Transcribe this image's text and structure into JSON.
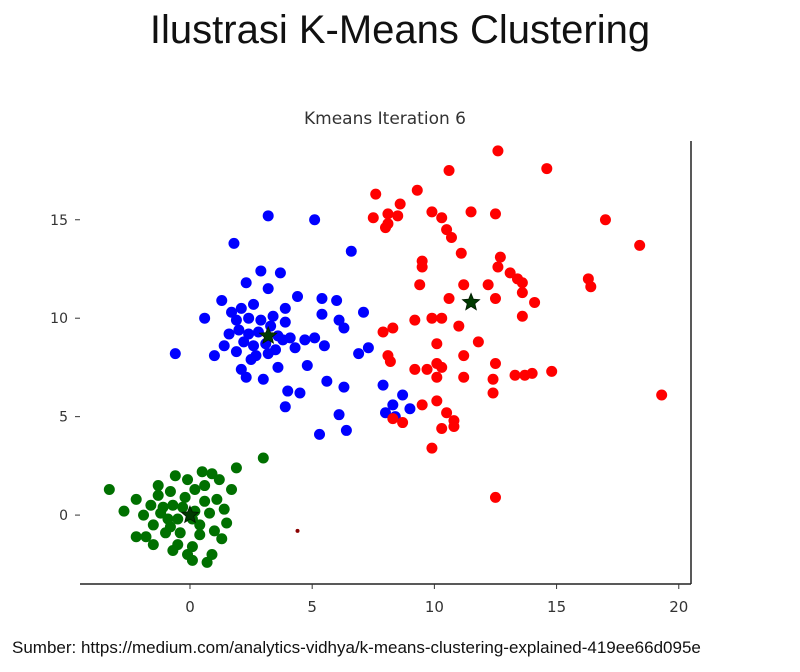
{
  "slide": {
    "title": "Ilustrasi K-Means Clustering",
    "source": "Sumber: https://medium.com/analytics-vidhya/k-means-clustering-explained-419ee66d095e"
  },
  "chart_data": {
    "type": "scatter",
    "title": "Kmeans Iteration 6",
    "xlabel": "",
    "ylabel": "",
    "xlim": [
      -4.5,
      20.5
    ],
    "ylim": [
      -3.5,
      19
    ],
    "xticks": [
      0,
      5,
      10,
      15,
      20
    ],
    "yticks": [
      0,
      5,
      10,
      15
    ],
    "grid": false,
    "legend": false,
    "series": [
      {
        "color": "#0000ff",
        "points": [
          [
            3.2,
            15.2
          ],
          [
            5.1,
            15
          ],
          [
            1.8,
            13.8
          ],
          [
            6.6,
            13.4
          ],
          [
            2.9,
            12.4
          ],
          [
            3.7,
            12.3
          ],
          [
            2.3,
            11.8
          ],
          [
            3.2,
            11.5
          ],
          [
            4.4,
            11.1
          ],
          [
            5.4,
            11
          ],
          [
            6,
            10.9
          ],
          [
            7.1,
            10.3
          ],
          [
            1.3,
            10.9
          ],
          [
            2.6,
            10.7
          ],
          [
            1.7,
            10.3
          ],
          [
            5.4,
            10.2
          ],
          [
            6.1,
            9.9
          ],
          [
            0.6,
            10
          ],
          [
            3.9,
            9.8
          ],
          [
            6.3,
            9.5
          ],
          [
            5.1,
            9
          ],
          [
            1.4,
            8.6
          ],
          [
            1.9,
            8.3
          ],
          [
            4.3,
            8.5
          ],
          [
            5.5,
            8.6
          ],
          [
            7.3,
            8.5
          ],
          [
            -0.6,
            8.2
          ],
          [
            1,
            8.1
          ],
          [
            2.5,
            7.9
          ],
          [
            4.8,
            7.6
          ],
          [
            3.6,
            7.5
          ],
          [
            2.1,
            7.4
          ],
          [
            6.9,
            8.2
          ],
          [
            2.3,
            7
          ],
          [
            3,
            6.9
          ],
          [
            4,
            6.3
          ],
          [
            5.6,
            6.8
          ],
          [
            6.3,
            6.5
          ],
          [
            7.9,
            6.6
          ],
          [
            8.7,
            6.1
          ],
          [
            3.9,
            5.5
          ],
          [
            4.5,
            6.2
          ],
          [
            8.3,
            5.6
          ],
          [
            9,
            5.4
          ],
          [
            8,
            5.2
          ],
          [
            8.4,
            5
          ],
          [
            6.1,
            5.1
          ],
          [
            6.4,
            4.3
          ],
          [
            5.3,
            4.1
          ],
          [
            2,
            9.4
          ],
          [
            2.4,
            9.2
          ],
          [
            2.8,
            9.3
          ],
          [
            3.3,
            9.6
          ],
          [
            3.6,
            9.1
          ],
          [
            2.2,
            8.8
          ],
          [
            2.6,
            8.6
          ],
          [
            3.1,
            8.7
          ],
          [
            3.5,
            8.4
          ],
          [
            2.9,
            9.9
          ],
          [
            2.4,
            10
          ],
          [
            3.4,
            10.1
          ],
          [
            1.9,
            9.9
          ],
          [
            4.1,
            9
          ],
          [
            3.8,
            8.9
          ],
          [
            2.7,
            8.1
          ],
          [
            3.2,
            8.2
          ],
          [
            1.6,
            9.2
          ],
          [
            4.7,
            8.9
          ],
          [
            3.9,
            10.5
          ],
          [
            2.1,
            10.5
          ]
        ]
      },
      {
        "color": "#ff0000",
        "points": [
          [
            12.6,
            18.5
          ],
          [
            14.6,
            17.6
          ],
          [
            10.6,
            17.5
          ],
          [
            7.6,
            16.3
          ],
          [
            9.3,
            16.5
          ],
          [
            8.6,
            15.8
          ],
          [
            8.5,
            15.2
          ],
          [
            8.1,
            15.3
          ],
          [
            7.5,
            15.1
          ],
          [
            8,
            14.6
          ],
          [
            9.9,
            15.4
          ],
          [
            10.3,
            15.1
          ],
          [
            11.5,
            15.4
          ],
          [
            12.5,
            15.3
          ],
          [
            10.5,
            14.5
          ],
          [
            10.7,
            14.1
          ],
          [
            17,
            15
          ],
          [
            18.4,
            13.7
          ],
          [
            8.1,
            14.8
          ],
          [
            11.1,
            13.3
          ],
          [
            12.7,
            13.1
          ],
          [
            12.6,
            12.6
          ],
          [
            9.5,
            12.9
          ],
          [
            9.5,
            12.6
          ],
          [
            13.1,
            12.3
          ],
          [
            13.4,
            12
          ],
          [
            16.3,
            12
          ],
          [
            16.4,
            11.6
          ],
          [
            9.4,
            11.7
          ],
          [
            11.2,
            11.7
          ],
          [
            12.2,
            11.7
          ],
          [
            13.6,
            11.8
          ],
          [
            13.6,
            11.3
          ],
          [
            12.5,
            11
          ],
          [
            10.6,
            11
          ],
          [
            14.1,
            10.8
          ],
          [
            13.6,
            10.1
          ],
          [
            10.3,
            10
          ],
          [
            9.9,
            10
          ],
          [
            9.2,
            9.9
          ],
          [
            11,
            9.6
          ],
          [
            8.3,
            9.5
          ],
          [
            7.9,
            9.3
          ],
          [
            10.1,
            8.7
          ],
          [
            11.8,
            8.8
          ],
          [
            8.1,
            8.1
          ],
          [
            8.2,
            7.8
          ],
          [
            11.2,
            8.1
          ],
          [
            10.1,
            7.7
          ],
          [
            9.7,
            7.4
          ],
          [
            9.2,
            7.4
          ],
          [
            12.5,
            7.7
          ],
          [
            10.3,
            7.5
          ],
          [
            10.1,
            7
          ],
          [
            11.2,
            7
          ],
          [
            12.4,
            6.9
          ],
          [
            13.3,
            7.1
          ],
          [
            13.7,
            7.1
          ],
          [
            14,
            7.2
          ],
          [
            14.8,
            7.3
          ],
          [
            10.1,
            5.8
          ],
          [
            8.3,
            4.9
          ],
          [
            10.8,
            4.8
          ],
          [
            12.4,
            6.2
          ],
          [
            9.5,
            5.6
          ],
          [
            10.3,
            4.4
          ],
          [
            10.8,
            4.5
          ],
          [
            9.9,
            3.4
          ],
          [
            19.3,
            6.1
          ],
          [
            12.5,
            0.9
          ],
          [
            8.7,
            4.7
          ],
          [
            10.5,
            5.2
          ]
        ]
      },
      {
        "color": "#007000",
        "points": [
          [
            3,
            2.9
          ],
          [
            1.9,
            2.4
          ],
          [
            0.5,
            2.2
          ],
          [
            -0.6,
            2
          ],
          [
            0.9,
            2.1
          ],
          [
            1.2,
            1.8
          ],
          [
            -3.3,
            1.3
          ],
          [
            -1.3,
            1.5
          ],
          [
            -0.8,
            1.2
          ],
          [
            1.7,
            1.3
          ],
          [
            -2.2,
            0.8
          ],
          [
            -1.6,
            0.5
          ],
          [
            -2.7,
            0.2
          ],
          [
            -1.2,
            0.1
          ],
          [
            1.4,
            0.3
          ],
          [
            1.5,
            -0.4
          ],
          [
            -0.7,
            0.5
          ],
          [
            0.2,
            1.3
          ],
          [
            -0.2,
            0.9
          ],
          [
            0.6,
            0.7
          ],
          [
            -0.5,
            -0.2
          ],
          [
            0.4,
            -0.5
          ],
          [
            -0.8,
            -0.6
          ],
          [
            0.8,
            0.1
          ],
          [
            -1.5,
            -0.5
          ],
          [
            -1.8,
            -1.1
          ],
          [
            -2.2,
            -1.1
          ],
          [
            -1,
            -0.9
          ],
          [
            1.3,
            -1.2
          ],
          [
            0.4,
            -1
          ],
          [
            -1.5,
            -1.5
          ],
          [
            -0.5,
            -1.5
          ],
          [
            0.1,
            -1.6
          ],
          [
            -0.7,
            -1.8
          ],
          [
            -0.1,
            -2
          ],
          [
            0.9,
            -2
          ],
          [
            0.1,
            -2.3
          ],
          [
            0.7,
            -2.4
          ],
          [
            -1.1,
            0.4
          ],
          [
            0.2,
            0.2
          ],
          [
            -0.3,
            0.4
          ],
          [
            0.1,
            -0.2
          ],
          [
            -0.4,
            -0.9
          ],
          [
            1,
            -0.8
          ],
          [
            -1.3,
            1
          ],
          [
            0.6,
            1.5
          ],
          [
            -0.9,
            -0.2
          ],
          [
            1.1,
            0.8
          ],
          [
            -1.9,
            0
          ],
          [
            -0.1,
            1.8
          ]
        ]
      },
      {
        "color": "#8b0000",
        "size": "small",
        "points": [
          [
            4.4,
            -0.8
          ]
        ]
      }
    ],
    "centroids": [
      {
        "x": 3.2,
        "y": 9.1,
        "color": "#003a00",
        "marker": "star"
      },
      {
        "x": 11.5,
        "y": 10.8,
        "color": "#003a00",
        "marker": "star"
      },
      {
        "x": 0,
        "y": 0,
        "color": "#003a00",
        "marker": "star"
      }
    ]
  }
}
